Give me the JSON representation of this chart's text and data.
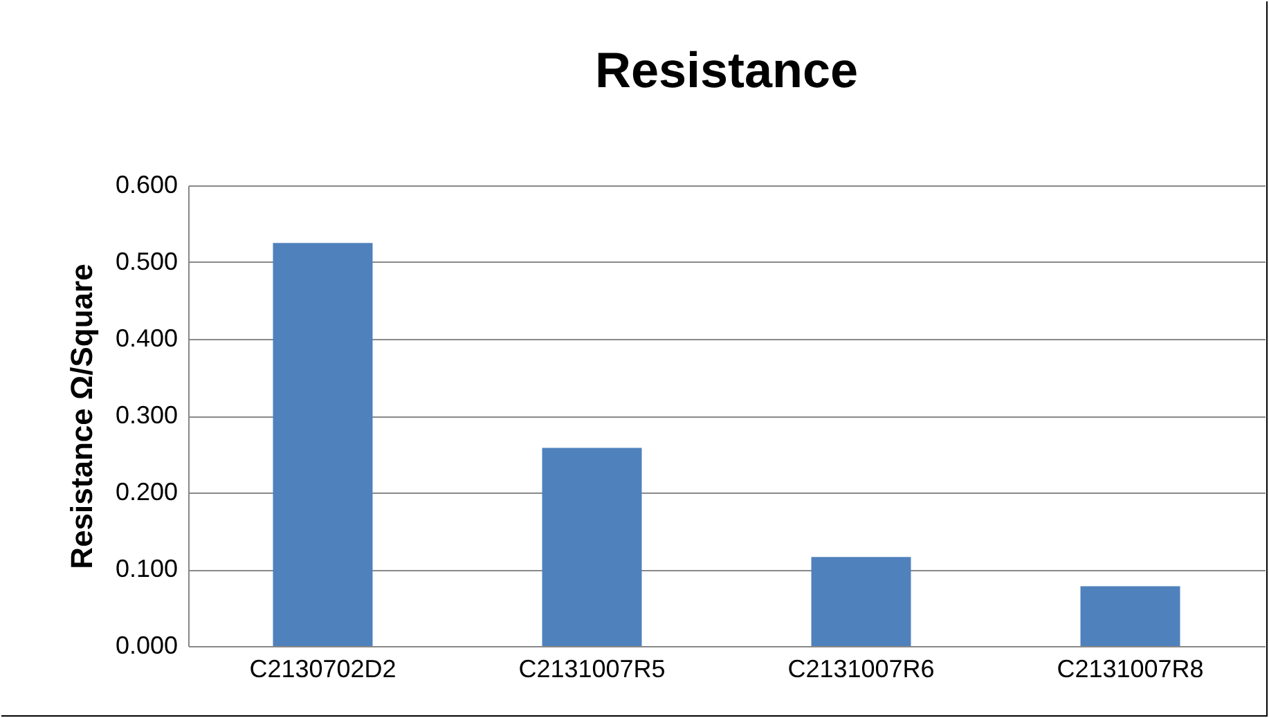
{
  "chart_data": {
    "type": "bar",
    "title": "Resistance",
    "ylabel": "Resistance Ω/Square",
    "categories": [
      "C2130702D2",
      "C2131007R5",
      "C2131007R6",
      "C2131007R8"
    ],
    "values": [
      0.525,
      0.258,
      0.116,
      0.078
    ],
    "color": "#4f81bd",
    "ylim": [
      0,
      0.6
    ],
    "yticks": [
      {
        "value": 0,
        "label": "0.000"
      },
      {
        "value": 0.1,
        "label": "0.100"
      },
      {
        "value": 0.2,
        "label": "0.200"
      },
      {
        "value": 0.3,
        "label": "0.300"
      },
      {
        "value": 0.4,
        "label": "0.400"
      },
      {
        "value": 0.5,
        "label": "0.500"
      },
      {
        "value": 0.6,
        "label": "0.600"
      }
    ],
    "grid": true
  }
}
